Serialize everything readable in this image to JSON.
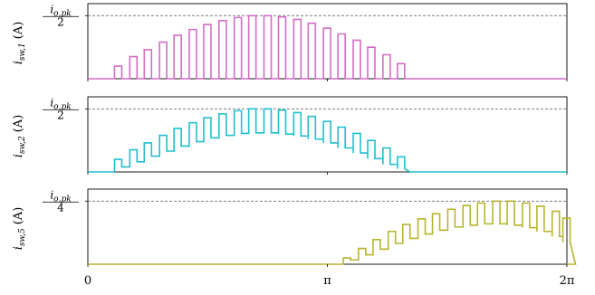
{
  "chart_data": [
    {
      "type": "line",
      "ylabel_main": "i",
      "ylabel_sub": "sw,1",
      "ylabel_unit": "(A)",
      "ref_label_num": "i",
      "ref_label_num_sub": "o,pk",
      "ref_label_den": "2",
      "ref_fraction_of_peak": 0.5,
      "color": "#d46cc6",
      "active_half": "first",
      "series_shape": "pulsed half-sine, returns to zero between pulses",
      "xlim": [
        0,
        6.2832
      ],
      "ylim_fraction_of_reference": [
        0,
        1.18
      ],
      "pulses": [
        {
          "x": 0.35,
          "y": 0.2
        },
        {
          "x": 0.55,
          "y": 0.35
        },
        {
          "x": 0.74,
          "y": 0.46
        },
        {
          "x": 0.94,
          "y": 0.58
        },
        {
          "x": 1.13,
          "y": 0.69
        },
        {
          "x": 1.33,
          "y": 0.78
        },
        {
          "x": 1.52,
          "y": 0.86
        },
        {
          "x": 1.72,
          "y": 0.92
        },
        {
          "x": 1.92,
          "y": 0.97
        },
        {
          "x": 2.11,
          "y": 1.0
        },
        {
          "x": 2.31,
          "y": 1.0
        },
        {
          "x": 2.5,
          "y": 0.98
        },
        {
          "x": 2.7,
          "y": 0.94
        },
        {
          "x": 2.89,
          "y": 0.88
        },
        {
          "x": 3.09,
          "y": 0.8
        },
        {
          "x": 3.28,
          "y": 0.71
        },
        {
          "x": 3.48,
          "y": 0.61
        },
        {
          "x": 3.67,
          "y": 0.5
        },
        {
          "x": 3.87,
          "y": 0.38
        },
        {
          "x": 4.06,
          "y": 0.24
        }
      ]
    },
    {
      "type": "line",
      "ylabel_main": "i",
      "ylabel_sub": "sw,2",
      "ylabel_unit": "(A)",
      "ref_label_num": "i",
      "ref_label_num_sub": "o,pk",
      "ref_label_den": "2",
      "ref_fraction_of_peak": 0.5,
      "color": "#1fbfcf",
      "active_half": "first",
      "series_shape": "stepped half-sine with lower-level baseline between pulses",
      "xlim": [
        0,
        6.2832
      ],
      "ylim_fraction_of_reference": [
        0,
        1.18
      ],
      "pulses": [
        {
          "x": 0.35,
          "y": 0.2,
          "base": 0.08
        },
        {
          "x": 0.55,
          "y": 0.35,
          "base": 0.16
        },
        {
          "x": 0.74,
          "y": 0.46,
          "base": 0.25
        },
        {
          "x": 0.94,
          "y": 0.58,
          "base": 0.33
        },
        {
          "x": 1.13,
          "y": 0.69,
          "base": 0.41
        },
        {
          "x": 1.33,
          "y": 0.78,
          "base": 0.48
        },
        {
          "x": 1.52,
          "y": 0.86,
          "base": 0.54
        },
        {
          "x": 1.72,
          "y": 0.92,
          "base": 0.58
        },
        {
          "x": 1.92,
          "y": 0.97,
          "base": 0.61
        },
        {
          "x": 2.11,
          "y": 1.0,
          "base": 0.62
        },
        {
          "x": 2.31,
          "y": 1.0,
          "base": 0.62
        },
        {
          "x": 2.5,
          "y": 0.98,
          "base": 0.6
        },
        {
          "x": 2.7,
          "y": 0.94,
          "base": 0.57
        },
        {
          "x": 2.89,
          "y": 0.88,
          "base": 0.52
        },
        {
          "x": 3.09,
          "y": 0.8,
          "base": 0.46
        },
        {
          "x": 3.28,
          "y": 0.71,
          "base": 0.38
        },
        {
          "x": 3.48,
          "y": 0.61,
          "base": 0.3
        },
        {
          "x": 3.67,
          "y": 0.5,
          "base": 0.21
        },
        {
          "x": 3.87,
          "y": 0.38,
          "base": 0.12
        },
        {
          "x": 4.06,
          "y": 0.24,
          "base": 0.05
        }
      ]
    },
    {
      "type": "line",
      "ylabel_main": "i",
      "ylabel_sub": "sw,5",
      "ylabel_unit": "(A)",
      "ref_label_num": "i",
      "ref_label_num_sub": "o,pk",
      "ref_label_den": "4",
      "ref_fraction_of_peak": 0.25,
      "color": "#b8b52c",
      "active_half": "second",
      "series_shape": "stepped half-sine with lower-level baseline between pulses",
      "xlim": [
        0,
        6.2832
      ],
      "ylim_fraction_of_reference": [
        0,
        1.18
      ],
      "pulses": [
        {
          "x": 3.35,
          "y": 0.1,
          "base": 0.07
        },
        {
          "x": 3.55,
          "y": 0.25,
          "base": 0.15
        },
        {
          "x": 3.74,
          "y": 0.39,
          "base": 0.24
        },
        {
          "x": 3.94,
          "y": 0.52,
          "base": 0.33
        },
        {
          "x": 4.13,
          "y": 0.63,
          "base": 0.41
        },
        {
          "x": 4.33,
          "y": 0.72,
          "base": 0.48
        },
        {
          "x": 4.52,
          "y": 0.8,
          "base": 0.54
        },
        {
          "x": 4.72,
          "y": 0.87,
          "base": 0.59
        },
        {
          "x": 4.92,
          "y": 0.93,
          "base": 0.62
        },
        {
          "x": 5.11,
          "y": 0.97,
          "base": 0.64
        },
        {
          "x": 5.31,
          "y": 1.0,
          "base": 0.64
        },
        {
          "x": 5.5,
          "y": 1.0,
          "base": 0.62
        },
        {
          "x": 5.7,
          "y": 0.97,
          "base": 0.58
        },
        {
          "x": 5.89,
          "y": 0.92,
          "base": 0.52
        },
        {
          "x": 6.09,
          "y": 0.84,
          "base": 0.44
        },
        {
          "x": 6.23,
          "y": 0.73,
          "base": 0.35
        }
      ]
    }
  ],
  "x_axis": {
    "ticks": [
      {
        "value": 0,
        "label": "0"
      },
      {
        "value": 3.1416,
        "label": "π"
      },
      {
        "value": 6.2832,
        "label": "2π"
      }
    ]
  },
  "grid": false,
  "legend": "none"
}
